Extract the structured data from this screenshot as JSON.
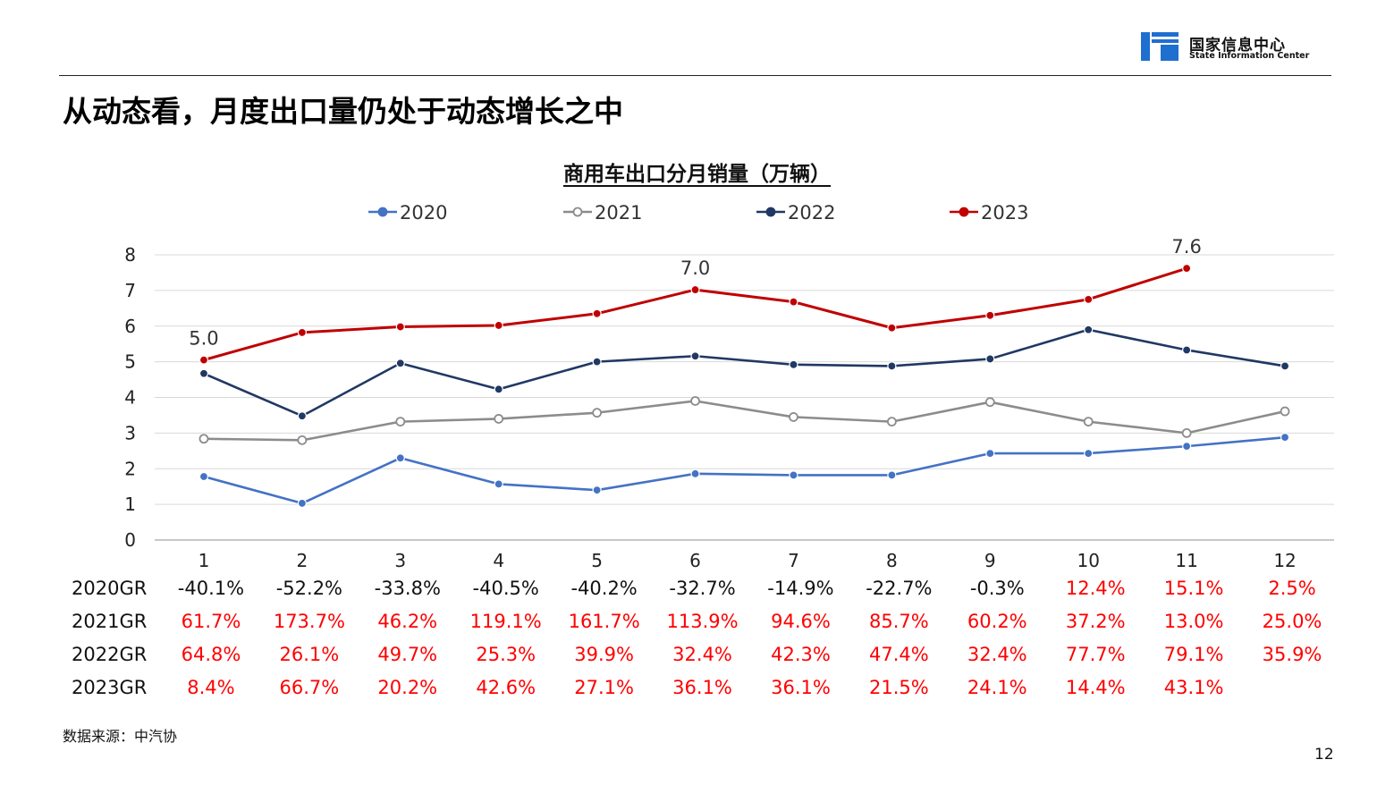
{
  "header": {
    "logo_cn": "国家信息中心",
    "logo_en": "State Information Center",
    "logo_icon": "state-information-center-logo",
    "brand_color": "#1f6fd1"
  },
  "page_title": "从动态看，月度出口量仍处于动态增长之中",
  "chart_data": {
    "type": "line",
    "title": "商用车出口分月销量（万辆）",
    "categories": [
      "1",
      "2",
      "3",
      "4",
      "5",
      "6",
      "7",
      "8",
      "9",
      "10",
      "11",
      "12"
    ],
    "ylim": [
      0,
      8
    ],
    "yticks": [
      "0",
      "1",
      "2",
      "3",
      "4",
      "5",
      "6",
      "7",
      "8"
    ],
    "grid": true,
    "legend_position": "top",
    "series": [
      {
        "name": "2020",
        "color": "#4472c4",
        "marker": "filled",
        "values": [
          1.78,
          1.03,
          2.3,
          1.57,
          1.4,
          1.86,
          1.82,
          1.82,
          2.43,
          2.43,
          2.63,
          2.88
        ]
      },
      {
        "name": "2021",
        "color": "#8c8c8c",
        "marker": "hollow",
        "values": [
          2.84,
          2.8,
          3.32,
          3.4,
          3.57,
          3.9,
          3.45,
          3.32,
          3.87,
          3.32,
          3.0,
          3.61
        ]
      },
      {
        "name": "2022",
        "color": "#203864",
        "marker": "filled",
        "values": [
          4.67,
          3.48,
          4.96,
          4.23,
          5.0,
          5.16,
          4.92,
          4.88,
          5.08,
          5.9,
          5.33,
          4.88
        ]
      },
      {
        "name": "2023",
        "color": "#c00000",
        "marker": "filled",
        "values": [
          5.05,
          5.82,
          5.98,
          6.02,
          6.35,
          7.02,
          6.68,
          5.95,
          6.3,
          6.75,
          7.62,
          null
        ]
      }
    ],
    "data_labels": [
      {
        "series": "2023",
        "index": 0,
        "text": "5.0"
      },
      {
        "series": "2023",
        "index": 5,
        "text": "7.0"
      },
      {
        "series": "2023",
        "index": 10,
        "text": "7.6"
      }
    ]
  },
  "growth_table": {
    "positive_color": "#ff0000",
    "negative_color": "#111111",
    "rows": [
      {
        "label": "2020GR",
        "values": [
          "-40.1%",
          "-52.2%",
          "-33.8%",
          "-40.5%",
          "-40.2%",
          "-32.7%",
          "-14.9%",
          "-22.7%",
          "-0.3%",
          "12.4%",
          "15.1%",
          "2.5%"
        ]
      },
      {
        "label": "2021GR",
        "values": [
          "61.7%",
          "173.7%",
          "46.2%",
          "119.1%",
          "161.7%",
          "113.9%",
          "94.6%",
          "85.7%",
          "60.2%",
          "37.2%",
          "13.0%",
          "25.0%"
        ]
      },
      {
        "label": "2022GR",
        "values": [
          "64.8%",
          "26.1%",
          "49.7%",
          "25.3%",
          "39.9%",
          "32.4%",
          "42.3%",
          "47.4%",
          "32.4%",
          "77.7%",
          "79.1%",
          "35.9%"
        ]
      },
      {
        "label": "2023GR",
        "values": [
          "8.4%",
          "66.7%",
          "20.2%",
          "42.6%",
          "27.1%",
          "36.1%",
          "36.1%",
          "21.5%",
          "24.1%",
          "14.4%",
          "43.1%",
          ""
        ]
      }
    ]
  },
  "source": "数据来源：中汽协",
  "page_number": "12"
}
